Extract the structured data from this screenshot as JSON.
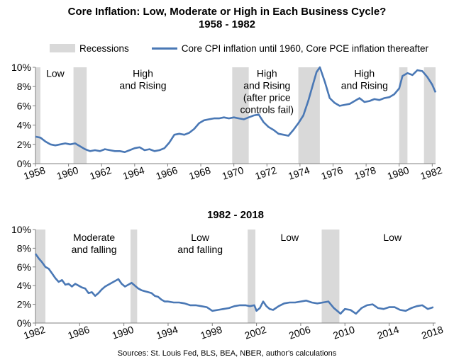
{
  "title_line1": "Core Inflation: Low, Moderate or High in Each Business Cycle?",
  "title_line2": "1958 - 1982",
  "legend": {
    "recessions": "Recessions",
    "series": "Core CPI inflation until 1960, Core PCE inflation thereafter"
  },
  "source": "Sources: St. Louis Fed, BLS, BEA, NBER, author's calculations",
  "colors": {
    "line": "#4a78b5",
    "recession": "#d9d9d9",
    "axis": "#808080"
  },
  "chart_data": [
    {
      "type": "line",
      "title": "",
      "xlim": [
        1958,
        1982.2
      ],
      "ylim": [
        0,
        10
      ],
      "x_ticks": [
        "1958",
        "1960",
        "1962",
        "1964",
        "1966",
        "1968",
        "1970",
        "1972",
        "1974",
        "1976",
        "1978",
        "1980",
        "1982"
      ],
      "x_tick_values": [
        1958,
        1960,
        1962,
        1964,
        1966,
        1968,
        1970,
        1972,
        1974,
        1976,
        1978,
        1980,
        1982
      ],
      "y_ticks": [
        "0%",
        "2%",
        "4%",
        "6%",
        "8%",
        "10%"
      ],
      "y_tick_values": [
        0,
        2,
        4,
        6,
        8,
        10
      ],
      "recessions": [
        [
          1958.0,
          1958.3
        ],
        [
          1960.3,
          1961.1
        ],
        [
          1969.9,
          1970.9
        ],
        [
          1973.9,
          1975.2
        ],
        [
          1980.0,
          1980.5
        ],
        [
          1981.5,
          1982.2
        ]
      ],
      "annotations": [
        {
          "lines": [
            "Low"
          ],
          "x": 1959.2,
          "y": 9.3
        },
        {
          "lines": [
            "High",
            "and Rising"
          ],
          "x": 1964.5,
          "y": 9.3
        },
        {
          "lines": [
            "High",
            "and Rising",
            "(after price",
            "controls fail)"
          ],
          "x": 1972.0,
          "y": 9.3
        },
        {
          "lines": [
            "High",
            "and Rising"
          ],
          "x": 1977.9,
          "y": 9.3
        }
      ],
      "series": [
        {
          "name": "Core CPI inflation until 1960, Core PCE inflation thereafter",
          "x": [
            1958.0,
            1958.3,
            1958.6,
            1958.9,
            1959.2,
            1959.5,
            1959.8,
            1960.1,
            1960.4,
            1960.7,
            1961.0,
            1961.3,
            1961.6,
            1961.9,
            1962.2,
            1962.5,
            1962.8,
            1963.1,
            1963.4,
            1963.7,
            1964.0,
            1964.3,
            1964.6,
            1964.9,
            1965.2,
            1965.5,
            1965.8,
            1966.1,
            1966.4,
            1966.7,
            1967.0,
            1967.3,
            1967.6,
            1967.9,
            1968.2,
            1968.5,
            1968.8,
            1969.1,
            1969.4,
            1969.7,
            1970.0,
            1970.3,
            1970.6,
            1970.9,
            1971.2,
            1971.5,
            1971.8,
            1972.1,
            1972.4,
            1972.7,
            1973.0,
            1973.3,
            1973.6,
            1973.9,
            1974.2,
            1974.5,
            1974.8,
            1975.0,
            1975.2,
            1975.5,
            1975.8,
            1976.1,
            1976.4,
            1976.7,
            1977.0,
            1977.3,
            1977.6,
            1977.9,
            1978.2,
            1978.5,
            1978.8,
            1979.1,
            1979.4,
            1979.7,
            1980.0,
            1980.2,
            1980.5,
            1980.8,
            1981.1,
            1981.4,
            1981.7,
            1982.0,
            1982.2
          ],
          "values": [
            2.8,
            2.7,
            2.3,
            2.0,
            1.9,
            2.0,
            2.1,
            2.0,
            2.1,
            1.8,
            1.5,
            1.3,
            1.4,
            1.3,
            1.5,
            1.4,
            1.3,
            1.3,
            1.2,
            1.4,
            1.6,
            1.7,
            1.4,
            1.5,
            1.3,
            1.4,
            1.6,
            2.2,
            3.0,
            3.1,
            3.0,
            3.2,
            3.6,
            4.2,
            4.5,
            4.6,
            4.7,
            4.7,
            4.8,
            4.7,
            4.8,
            4.7,
            4.6,
            4.8,
            5.0,
            5.1,
            4.3,
            3.8,
            3.5,
            3.1,
            3.0,
            2.9,
            3.5,
            4.2,
            5.0,
            6.5,
            8.3,
            9.5,
            10.0,
            8.5,
            6.8,
            6.3,
            6.0,
            6.1,
            6.2,
            6.5,
            6.8,
            6.4,
            6.5,
            6.7,
            6.6,
            6.8,
            6.9,
            7.2,
            7.8,
            9.1,
            9.4,
            9.2,
            9.7,
            9.6,
            9.0,
            8.2,
            7.4
          ]
        }
      ]
    },
    {
      "type": "line",
      "title": "1982 - 2018",
      "xlim": [
        1982,
        2018.2
      ],
      "ylim": [
        0,
        10
      ],
      "x_ticks": [
        "1982",
        "1986",
        "1990",
        "1994",
        "1998",
        "2002",
        "2006",
        "2010",
        "2014",
        "2018"
      ],
      "x_tick_values": [
        1982,
        1986,
        1990,
        1994,
        1998,
        2002,
        2006,
        2010,
        2014,
        2018
      ],
      "y_ticks": [
        "0%",
        "2%",
        "4%",
        "6%",
        "8%",
        "10%"
      ],
      "y_tick_values": [
        0,
        2,
        4,
        6,
        8,
        10
      ],
      "recessions": [
        [
          1982.0,
          1982.9
        ],
        [
          1990.6,
          1991.2
        ],
        [
          2001.2,
          2001.9
        ],
        [
          2007.9,
          2009.5
        ]
      ],
      "annotations": [
        {
          "lines": [
            "Moderate",
            "and falling"
          ],
          "x": 1987.3,
          "y": 9.1
        },
        {
          "lines": [
            "Low",
            "and falling"
          ],
          "x": 1996.9,
          "y": 9.1
        },
        {
          "lines": [
            "Low"
          ],
          "x": 2005.0,
          "y": 9.1
        },
        {
          "lines": [
            "Low"
          ],
          "x": 2014.3,
          "y": 9.1
        }
      ],
      "series": [
        {
          "name": "Core CPI inflation until 1960, Core PCE inflation thereafter",
          "x": [
            1982.0,
            1982.3,
            1982.6,
            1982.9,
            1983.2,
            1983.5,
            1983.8,
            1984.1,
            1984.4,
            1984.7,
            1985.0,
            1985.3,
            1985.6,
            1985.9,
            1986.2,
            1986.5,
            1986.8,
            1987.1,
            1987.4,
            1987.7,
            1988.0,
            1988.3,
            1988.6,
            1988.9,
            1989.2,
            1989.5,
            1989.8,
            1990.1,
            1990.4,
            1990.7,
            1991.0,
            1991.3,
            1991.6,
            1991.9,
            1992.2,
            1992.5,
            1992.8,
            1993.1,
            1993.4,
            1993.7,
            1994.0,
            1994.5,
            1995.0,
            1995.5,
            1996.0,
            1996.5,
            1997.0,
            1997.5,
            1998.0,
            1998.5,
            1999.0,
            1999.5,
            2000.0,
            2000.5,
            2001.0,
            2001.4,
            2001.8,
            2002.0,
            2002.3,
            2002.6,
            2002.9,
            2003.2,
            2003.5,
            2004.0,
            2004.5,
            2005.0,
            2005.5,
            2006.0,
            2006.5,
            2007.0,
            2007.5,
            2008.0,
            2008.5,
            2009.0,
            2009.3,
            2009.6,
            2010.0,
            2010.5,
            2011.0,
            2011.5,
            2012.0,
            2012.5,
            2013.0,
            2013.5,
            2014.0,
            2014.5,
            2015.0,
            2015.5,
            2016.0,
            2016.5,
            2017.0,
            2017.5,
            2018.0
          ],
          "values": [
            7.4,
            6.9,
            6.5,
            6.0,
            5.8,
            5.3,
            4.8,
            4.4,
            4.6,
            4.1,
            4.2,
            3.9,
            4.2,
            4.0,
            3.8,
            3.7,
            3.2,
            3.3,
            2.9,
            3.2,
            3.6,
            3.9,
            4.1,
            4.3,
            4.5,
            4.7,
            4.2,
            3.9,
            4.1,
            4.3,
            4.0,
            3.7,
            3.5,
            3.4,
            3.3,
            3.2,
            2.9,
            2.8,
            2.5,
            2.3,
            2.3,
            2.2,
            2.2,
            2.1,
            1.9,
            1.9,
            1.8,
            1.7,
            1.3,
            1.4,
            1.5,
            1.6,
            1.8,
            1.9,
            1.9,
            1.8,
            1.9,
            1.3,
            1.6,
            2.3,
            1.8,
            1.5,
            1.4,
            1.8,
            2.1,
            2.2,
            2.2,
            2.3,
            2.4,
            2.2,
            2.1,
            2.2,
            2.3,
            1.6,
            1.3,
            1.0,
            1.5,
            1.4,
            1.0,
            1.6,
            1.9,
            2.0,
            1.6,
            1.5,
            1.7,
            1.7,
            1.4,
            1.3,
            1.6,
            1.8,
            1.9,
            1.5,
            1.7
          ]
        }
      ]
    }
  ]
}
